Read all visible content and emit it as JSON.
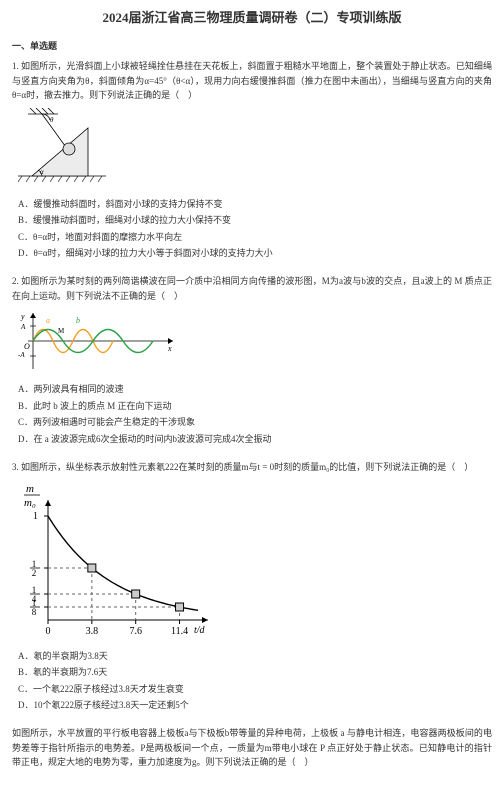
{
  "title": "2024届浙江省高三物理质量调研卷（二）专项训练版",
  "section_heading": "一、单选题",
  "q1": {
    "stem": "1. 如图所示，光滑斜面上小球被轻绳拴住悬挂在天花板上，斜面置于粗糙水平地面上，整个装置处于静止状态。已知细绳与竖直方向夹角为θ，斜面倾角为α=45°（θ<α），现用力向右缓慢推斜面（推力在图中未画出），当细绳与竖直方向的夹角θ=α时，撤去推力。则下列说法正确的是（　）",
    "opts": {
      "A": "A．缓慢推动斜面时，斜面对小球的支持力保持不变",
      "B": "B．缓慢推动斜面时，细绳对小球的拉力大小保持不变",
      "C": "C．θ=α时，地面对斜面的摩擦力水平向左",
      "D": "D．θ=α时，细绳对小球的拉力大小等于斜面对小球的支持力大小"
    },
    "fig": {
      "inclineColor": "#e8e8e8",
      "outlineColor": "#000000",
      "ballColor": "#d9d9d9",
      "hatchColor": "#000000"
    }
  },
  "q2": {
    "stem": "2. 如图所示为某时刻的两列简谐横波在同一介质中沿相同方向传播的波形图，M为a波与b波的交点，且a波上的 M 质点正在向上运动。则下列说法不正确的是（　）",
    "opts": {
      "A": "A．两列波具有相同的波速",
      "B": "B．此时 b 波上的质点 M 正在向下运动",
      "C": "C．两列波相遇时可能会产生稳定的干涉现象",
      "D": "D．在 a 波波源完成6次全振动的时间内b波波源可完成4次全振动"
    },
    "fig": {
      "aColor": "#f4a020",
      "bColor": "#2aa048",
      "axisColor": "#000000",
      "A_height": 24,
      "xLabel": "x",
      "yLabel": "y",
      "Oposition": 0,
      "a_label": "a",
      "b_label": "b",
      "M_label": "M"
    }
  },
  "q3": {
    "stem": "3. 如图所示，纵坐标表示放射性元素氡222在某时刻的质量m与t = 0时刻的质量m₀的比值，则下列说法正确的是（　）",
    "opts": {
      "A": "A．氡的半衰期为3.8天",
      "B": "B．氡的半衰期为7.6天",
      "C": "C．一个氡222原子核经过3.8天才发生衰变",
      "D": "D．10个氡222原子核经过3.8天一定还剩5个"
    },
    "fig": {
      "axisColor": "#000000",
      "curveColor": "#000000",
      "dashColor": "#666666",
      "markerColor": "#cccccc",
      "markerBorder": "#000000",
      "ylabel_html": "m/m₀",
      "xlabel": "t/d",
      "yticks": [
        "1",
        "1/2",
        "1/4",
        "1/8"
      ],
      "yvals": [
        1.0,
        0.5,
        0.25,
        0.125
      ],
      "xticks": [
        "0",
        "3.8",
        "7.6",
        "11.4"
      ],
      "xvals": [
        0,
        3.8,
        7.6,
        11.4
      ],
      "xmax": 13.0,
      "markers": [
        {
          "x": 3.8,
          "y": 0.5
        },
        {
          "x": 7.6,
          "y": 0.25
        },
        {
          "x": 11.4,
          "y": 0.125
        }
      ]
    }
  },
  "q4": {
    "stem": "如图所示，水平放置的平行板电容器上极板a与下极板b带等量的异种电荷，上极板 a 与静电计相连，电容器两极板间的电势差等于指针所指示的电势差。P是两极板间一个点，一质量为m带电小球在 P 点正好处于静止状态。已知静电计的指针带正电，规定大地的电势为零，重力加速度为g。则下列说法正确的是（　）"
  }
}
